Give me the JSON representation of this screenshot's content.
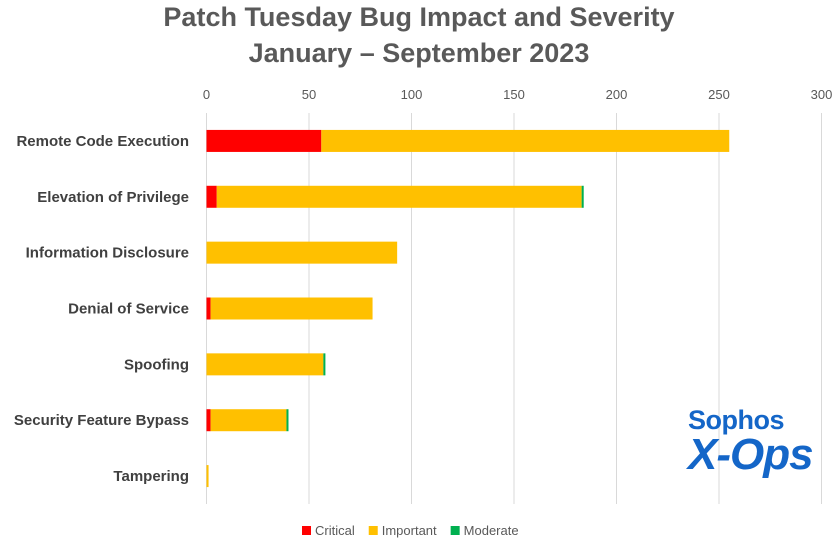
{
  "chart_data": {
    "type": "bar",
    "orientation": "horizontal",
    "stacked": true,
    "title": "Patch Tuesday Bug Impact and Severity",
    "subtitle": "January – September 2023",
    "categories": [
      "Remote Code Execution",
      "Elevation of Privilege",
      "Information Disclosure",
      "Denial of Service",
      "Spoofing",
      "Security Feature Bypass",
      "Tampering"
    ],
    "series": [
      {
        "name": "Critical",
        "color": "#ff0000",
        "values": [
          56,
          5,
          0,
          2,
          0,
          2,
          0
        ]
      },
      {
        "name": "Important",
        "color": "#ffc000",
        "values": [
          199,
          178,
          93,
          79,
          57,
          37,
          1
        ]
      },
      {
        "name": "Moderate",
        "color": "#00b050",
        "values": [
          0,
          1,
          0,
          0,
          1,
          1,
          0
        ]
      }
    ],
    "xlim": [
      0,
      300
    ],
    "xticks": [
      0,
      50,
      100,
      150,
      200,
      250,
      300
    ],
    "x_axis_position": "top",
    "grid": true,
    "legend_position": "bottom"
  },
  "logo": {
    "line1": "Sophos",
    "line2": "X-Ops"
  }
}
